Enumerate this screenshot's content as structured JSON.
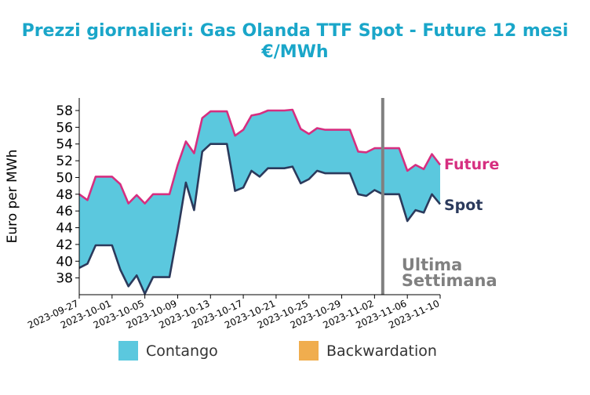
{
  "chart_data": {
    "type": "area",
    "title": "Prezzi giornalieri: Gas Olanda TTF Spot - Future 12 mesi",
    "subtitle": "€/MWh",
    "ylabel": "Euro per MWh",
    "xlabel": "",
    "ylim": [
      36,
      59.5
    ],
    "yticks": [
      38,
      40,
      42,
      44,
      46,
      48,
      50,
      52,
      54,
      56,
      58
    ],
    "xlim": [
      "2023-09-27",
      "2023-11-10"
    ],
    "xticks": [
      "2023-09-27",
      "2023-10-01",
      "2023-10-05",
      "2023-10-09",
      "2023-10-13",
      "2023-10-17",
      "2023-10-21",
      "2023-10-25",
      "2023-10-29",
      "2023-11-02",
      "2023-11-06",
      "2023-11-10"
    ],
    "x": [
      "2023-09-27",
      "2023-09-28",
      "2023-09-29",
      "2023-09-30",
      "2023-10-01",
      "2023-10-02",
      "2023-10-03",
      "2023-10-04",
      "2023-10-05",
      "2023-10-06",
      "2023-10-07",
      "2023-10-08",
      "2023-10-09",
      "2023-10-10",
      "2023-10-11",
      "2023-10-12",
      "2023-10-13",
      "2023-10-14",
      "2023-10-15",
      "2023-10-16",
      "2023-10-17",
      "2023-10-18",
      "2023-10-19",
      "2023-10-20",
      "2023-10-21",
      "2023-10-22",
      "2023-10-23",
      "2023-10-24",
      "2023-10-25",
      "2023-10-26",
      "2023-10-27",
      "2023-10-28",
      "2023-10-29",
      "2023-10-30",
      "2023-10-31",
      "2023-11-01",
      "2023-11-02",
      "2023-11-03",
      "2023-11-04",
      "2023-11-05",
      "2023-11-06",
      "2023-11-07",
      "2023-11-08",
      "2023-11-09",
      "2023-11-10"
    ],
    "series": [
      {
        "name": "Future",
        "color": "#d62f80",
        "values": [
          48.0,
          47.3,
          50.1,
          50.1,
          50.1,
          49.2,
          46.9,
          47.9,
          46.9,
          48.0,
          48.0,
          48.0,
          51.5,
          54.3,
          52.9,
          57.1,
          57.9,
          57.9,
          57.9,
          55.0,
          55.7,
          57.4,
          57.6,
          58.0,
          58.0,
          58.0,
          58.1,
          55.8,
          55.2,
          55.9,
          55.7,
          55.7,
          55.7,
          55.7,
          53.1,
          53.0,
          53.5,
          53.5,
          53.5,
          53.5,
          50.8,
          51.5,
          51.0,
          52.8,
          51.5
        ]
      },
      {
        "name": "Spot",
        "color": "#2b3a5c",
        "values": [
          39.2,
          39.7,
          41.9,
          41.9,
          41.9,
          39.0,
          37.0,
          38.3,
          36.1,
          38.1,
          38.1,
          38.1,
          43.5,
          49.4,
          46.1,
          53.1,
          54.0,
          54.0,
          54.0,
          48.4,
          48.8,
          50.8,
          50.1,
          51.1,
          51.1,
          51.1,
          51.3,
          49.3,
          49.8,
          50.8,
          50.5,
          50.5,
          50.5,
          50.5,
          48.0,
          47.8,
          48.5,
          48.0,
          48.0,
          48.0,
          44.8,
          46.1,
          45.8,
          48.0,
          46.8
        ]
      }
    ],
    "fill_colors": {
      "contango": "#5bc8de",
      "backwardation": "#f0ad4e"
    },
    "vline": {
      "date": "2023-11-03",
      "label_line1": "Ultima",
      "label_line2": "Settimana",
      "color": "#808080"
    },
    "legend": {
      "position": "bottom",
      "items": [
        {
          "label": "Contango",
          "color": "#5bc8de"
        },
        {
          "label": "Backwardation",
          "color": "#f0ad4e"
        }
      ]
    },
    "grid": false
  }
}
